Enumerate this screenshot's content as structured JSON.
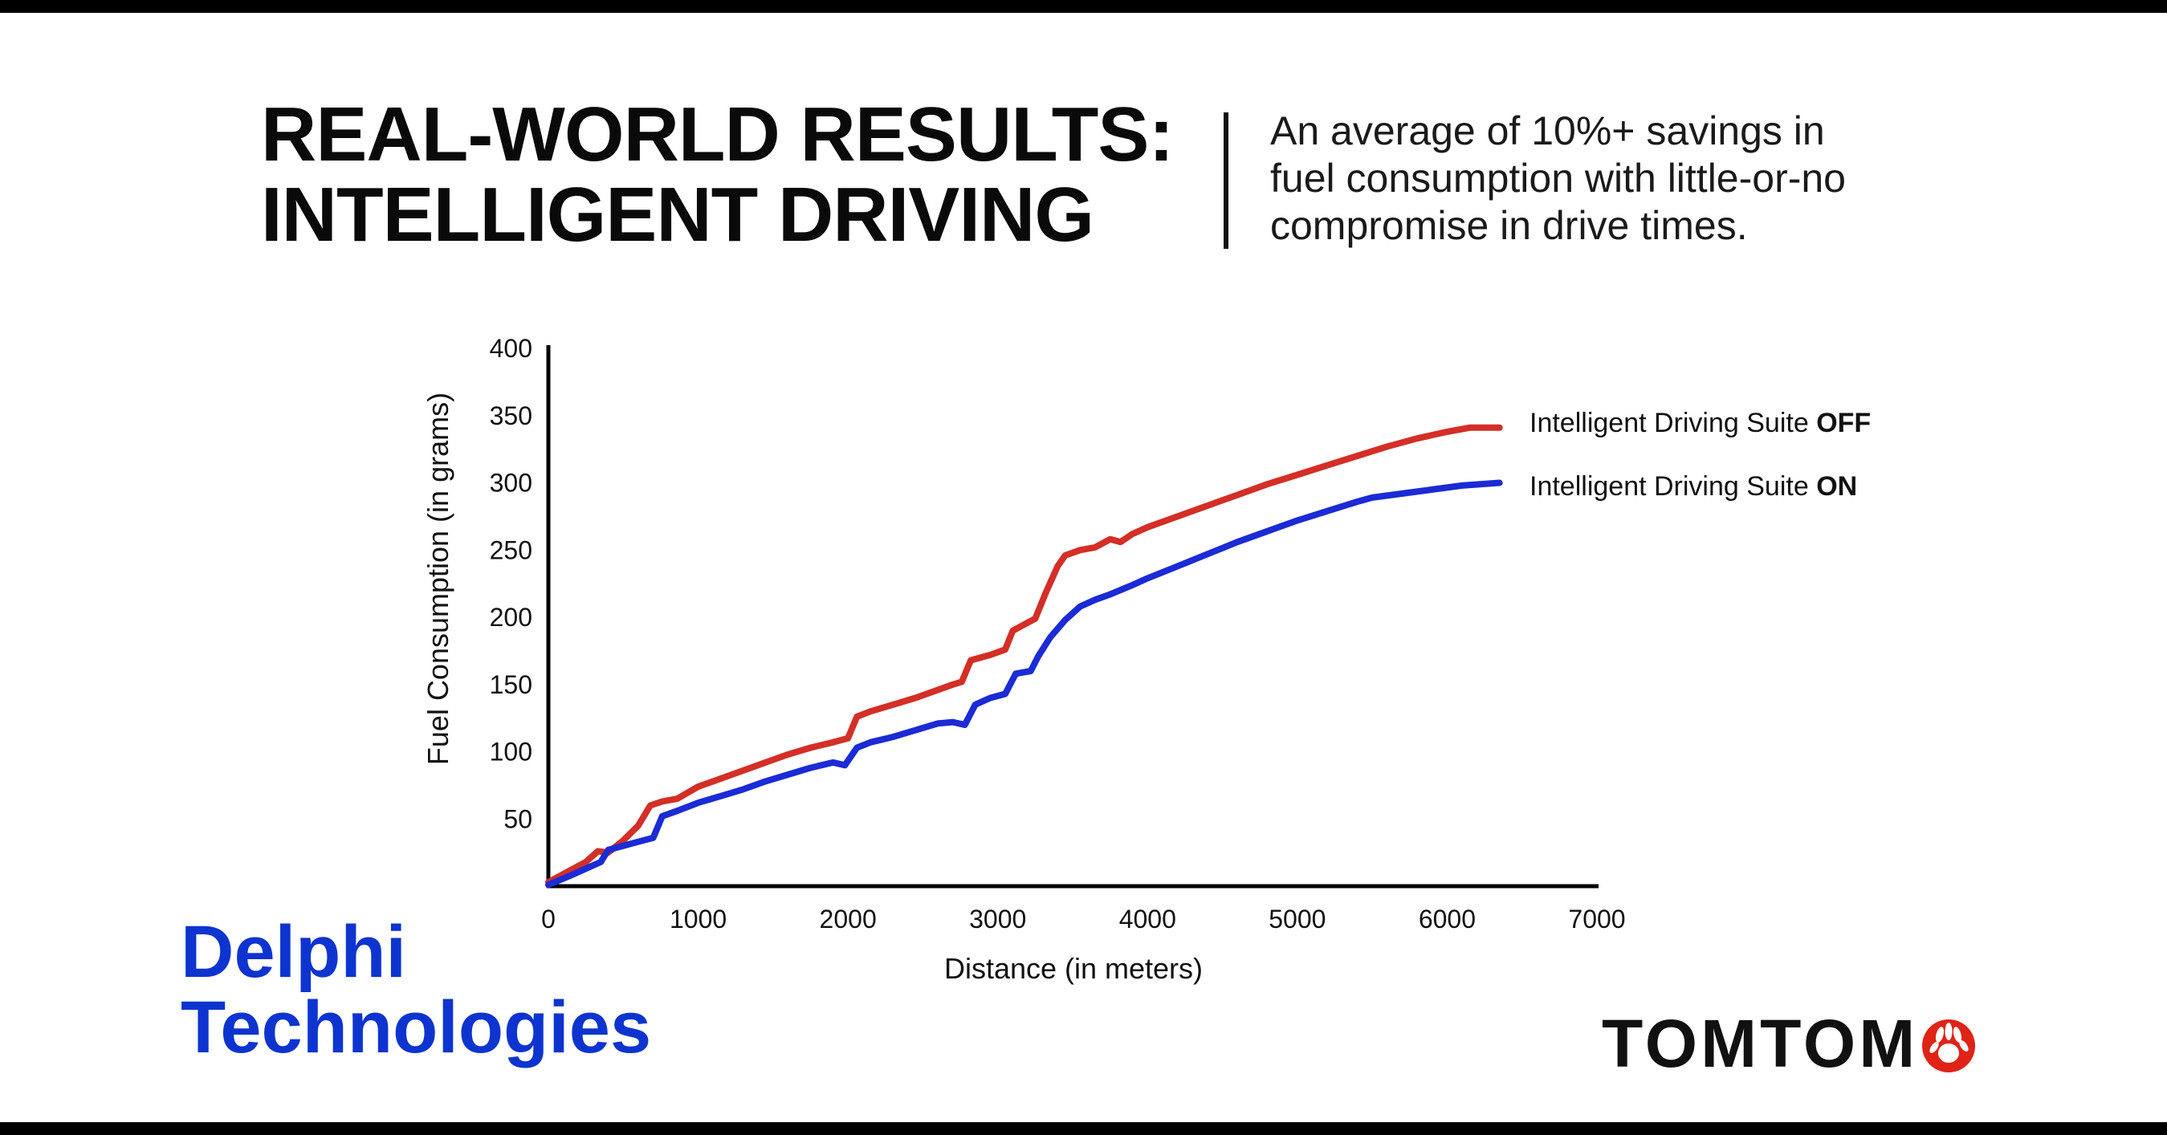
{
  "header": {
    "title_lines": [
      "REAL-WORLD RESULTS:",
      "INTELLIGENT DRIVING"
    ],
    "subtitle_lines": [
      "An average of 10%+ savings in",
      "fuel consumption with little-or-no",
      "compromise in drive times."
    ]
  },
  "brand": {
    "delphi_line1": "Delphi",
    "delphi_line2": "Technologies",
    "delphi_blue": "#0e34d0",
    "tomtom_word": "TOMTOM",
    "tomtom_red": "#df2317"
  },
  "chart_data": {
    "type": "line",
    "title": "",
    "xlabel": "Distance (in meters)",
    "ylabel": "Fuel Consumption (in grams)",
    "xlim": [
      0,
      7000
    ],
    "ylim": [
      0,
      400
    ],
    "x_ticks": [
      0,
      1000,
      2000,
      3000,
      4000,
      5000,
      6000,
      7000
    ],
    "y_ticks": [
      50,
      100,
      150,
      200,
      250,
      300,
      350,
      400
    ],
    "grid": false,
    "legend_position": "right-of-line-ends",
    "legend": [
      {
        "text": "Intelligent Driving Suite ",
        "bold": "OFF"
      },
      {
        "text": "Intelligent Driving Suite ",
        "bold": "ON"
      }
    ],
    "series": [
      {
        "name": "Intelligent Driving Suite OFF",
        "color": "#d32f27",
        "points": [
          [
            0,
            3
          ],
          [
            150,
            12
          ],
          [
            250,
            18
          ],
          [
            330,
            26
          ],
          [
            400,
            25
          ],
          [
            500,
            34
          ],
          [
            600,
            45
          ],
          [
            680,
            60
          ],
          [
            760,
            63
          ],
          [
            860,
            65
          ],
          [
            1000,
            74
          ],
          [
            1150,
            80
          ],
          [
            1300,
            86
          ],
          [
            1450,
            92
          ],
          [
            1600,
            98
          ],
          [
            1750,
            103
          ],
          [
            1900,
            107
          ],
          [
            2000,
            110
          ],
          [
            2060,
            126
          ],
          [
            2150,
            130
          ],
          [
            2300,
            135
          ],
          [
            2450,
            140
          ],
          [
            2600,
            146
          ],
          [
            2700,
            150
          ],
          [
            2760,
            152
          ],
          [
            2820,
            168
          ],
          [
            2950,
            172
          ],
          [
            3050,
            176
          ],
          [
            3100,
            190
          ],
          [
            3200,
            196
          ],
          [
            3250,
            199
          ],
          [
            3320,
            218
          ],
          [
            3400,
            238
          ],
          [
            3450,
            246
          ],
          [
            3550,
            250
          ],
          [
            3650,
            252
          ],
          [
            3750,
            258
          ],
          [
            3820,
            256
          ],
          [
            3900,
            262
          ],
          [
            4000,
            267
          ],
          [
            4200,
            275
          ],
          [
            4400,
            283
          ],
          [
            4600,
            291
          ],
          [
            4800,
            299
          ],
          [
            5000,
            306
          ],
          [
            5200,
            313
          ],
          [
            5400,
            320
          ],
          [
            5600,
            327
          ],
          [
            5800,
            333
          ],
          [
            6000,
            338
          ],
          [
            6150,
            341
          ],
          [
            6350,
            341
          ]
        ]
      },
      {
        "name": "Intelligent Driving Suite ON",
        "color": "#1b2bd5",
        "points": [
          [
            0,
            1
          ],
          [
            150,
            8
          ],
          [
            250,
            13
          ],
          [
            350,
            18
          ],
          [
            400,
            27
          ],
          [
            500,
            30
          ],
          [
            600,
            33
          ],
          [
            700,
            36
          ],
          [
            760,
            52
          ],
          [
            860,
            56
          ],
          [
            1000,
            62
          ],
          [
            1150,
            67
          ],
          [
            1300,
            72
          ],
          [
            1450,
            78
          ],
          [
            1600,
            83
          ],
          [
            1750,
            88
          ],
          [
            1900,
            92
          ],
          [
            1980,
            90
          ],
          [
            2060,
            103
          ],
          [
            2150,
            107
          ],
          [
            2300,
            111
          ],
          [
            2450,
            116
          ],
          [
            2600,
            121
          ],
          [
            2700,
            122
          ],
          [
            2780,
            120
          ],
          [
            2850,
            135
          ],
          [
            2950,
            140
          ],
          [
            3050,
            143
          ],
          [
            3120,
            158
          ],
          [
            3220,
            160
          ],
          [
            3270,
            171
          ],
          [
            3350,
            185
          ],
          [
            3450,
            198
          ],
          [
            3550,
            208
          ],
          [
            3650,
            213
          ],
          [
            3750,
            217
          ],
          [
            3900,
            224
          ],
          [
            4000,
            229
          ],
          [
            4200,
            238
          ],
          [
            4400,
            247
          ],
          [
            4600,
            256
          ],
          [
            4800,
            264
          ],
          [
            5000,
            272
          ],
          [
            5200,
            279
          ],
          [
            5400,
            286
          ],
          [
            5500,
            289
          ],
          [
            5700,
            292
          ],
          [
            5900,
            295
          ],
          [
            6100,
            298
          ],
          [
            6350,
            300
          ]
        ]
      }
    ]
  }
}
